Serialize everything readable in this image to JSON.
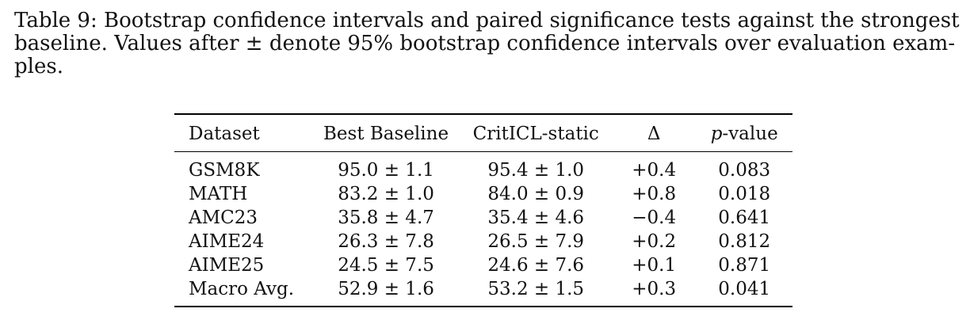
{
  "caption": {
    "line1": "Table 9: Bootstrap confidence intervals and paired significance tests against the strongest",
    "line2": "baseline. Values after ± denote 95% bootstrap confidence intervals over evaluation exam-",
    "line3": "ples."
  },
  "table": {
    "headers": {
      "dataset": "Dataset",
      "best_baseline": "Best Baseline",
      "criticl_static": "CritICL-static",
      "delta": "Δ",
      "p_italic": "p",
      "p_suffix": "-value"
    },
    "rows": [
      {
        "dataset": "GSM8K",
        "best_baseline": "95.0 ± 1.1",
        "criticl_static": "95.4 ± 1.0",
        "delta": "+0.4",
        "p_value": "0.083"
      },
      {
        "dataset": "MATH",
        "best_baseline": "83.2 ± 1.0",
        "criticl_static": "84.0 ± 0.9",
        "delta": "+0.8",
        "p_value": "0.018"
      },
      {
        "dataset": "AMC23",
        "best_baseline": "35.8 ± 4.7",
        "criticl_static": "35.4 ± 4.6",
        "delta": "−0.4",
        "p_value": "0.641"
      },
      {
        "dataset": "AIME24",
        "best_baseline": "26.3 ± 7.8",
        "criticl_static": "26.5 ± 7.9",
        "delta": "+0.2",
        "p_value": "0.812"
      },
      {
        "dataset": "AIME25",
        "best_baseline": "24.5 ± 7.5",
        "criticl_static": "24.6 ± 7.6",
        "delta": "+0.1",
        "p_value": "0.871"
      },
      {
        "dataset": "Macro Avg.",
        "best_baseline": "52.9 ± 1.6",
        "criticl_static": "53.2 ± 1.5",
        "delta": "+0.3",
        "p_value": "0.041"
      }
    ]
  }
}
